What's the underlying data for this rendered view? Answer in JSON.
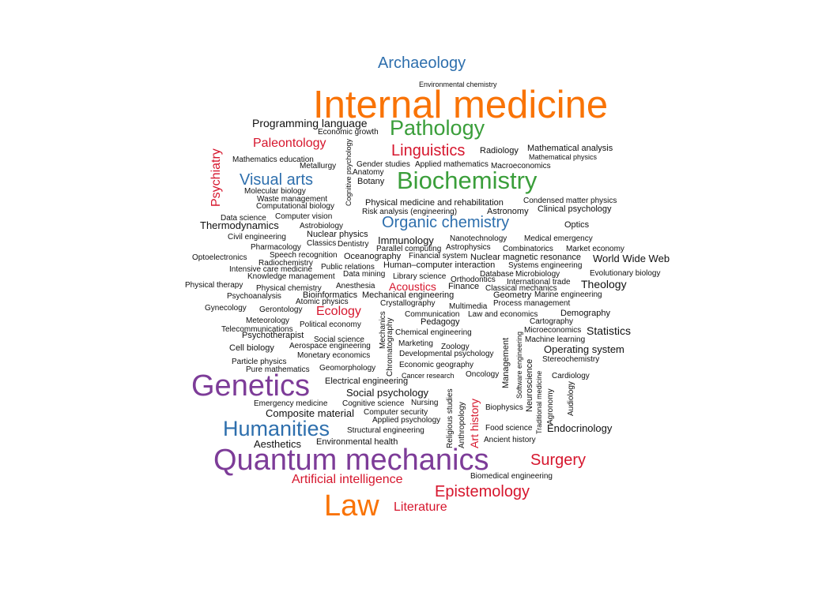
{
  "palette": {
    "orange": "#f97306",
    "green": "#3a9e3a",
    "blue": "#2e6fad",
    "purple": "#7d3c98",
    "red": "#d6162d",
    "black": "#111111"
  },
  "words": [
    "Archaeology",
    "Environmental chemistry",
    "Internal medicine",
    "Programming language",
    "Pathology",
    "Economic growth",
    "Psychiatry",
    "Paleontology",
    "Linguistics",
    "Radiology",
    "Mathematical analysis",
    "Mathematical physics",
    "Mathematics education",
    "Metallurgy",
    "Gender studies",
    "Applied mathematics",
    "Macroeconomics",
    "Visual arts",
    "Anatomy",
    "Botany",
    "Biochemistry",
    "Molecular biology",
    "Cognitive psychology",
    "Waste management",
    "Computational biology",
    "Physical medicine and rehabilitation",
    "Condensed matter physics",
    "Risk analysis (engineering)",
    "Astronomy",
    "Clinical psychology",
    "Data science",
    "Computer vision",
    "Organic chemistry",
    "Thermodynamics",
    "Astrobiology",
    "Optics",
    "Nuclear physics",
    "Civil engineering",
    "Immunology",
    "Nanotechnology",
    "Medical emergency",
    "Classics",
    "Dentistry",
    "Pharmacology",
    "Parallel computing",
    "Astrophysics",
    "Combinatorics",
    "Market economy",
    "Speech recognition",
    "Oceanography",
    "Financial system",
    "Nuclear magnetic resonance",
    "World Wide Web",
    "Optoelectronics",
    "Radiochemistry",
    "Public relations",
    "Human–computer interaction",
    "Systems engineering",
    "Intensive care medicine",
    "Data mining",
    "Database",
    "Microbiology",
    "Evolutionary biology",
    "Knowledge management",
    "Library science",
    "Orthodontics",
    "International trade",
    "Theology",
    "Physical therapy",
    "Physical chemistry",
    "Anesthesia",
    "Acoustics",
    "Finance",
    "Classical mechanics",
    "Psychoanalysis",
    "Bioinformatics",
    "Mechanical engineering",
    "Geometry",
    "Marine engineering",
    "Atomic physics",
    "Crystallography",
    "Multimedia",
    "Process management",
    "Gynecology",
    "Gerontology",
    "Ecology",
    "Communication",
    "Law and economics",
    "Demography",
    "Meteorology",
    "Mechanics",
    "Political economy",
    "Pedagogy",
    "Cartography",
    "Telecommunications",
    "Chemical engineering",
    "Microeconomics",
    "Statistics",
    "Psychotherapist",
    "Social science",
    "Chromatography",
    "Management",
    "Machine learning",
    "Cell biology",
    "Aerospace engineering",
    "Marketing",
    "Zoology",
    "Operating system",
    "Monetary economics",
    "Developmental psychology",
    "Software engineering",
    "Stereochemistry",
    "Particle physics",
    "Neuroscience",
    "Pure mathematics",
    "Geomorphology",
    "Economic geography",
    "Traditional medicine",
    "Genetics",
    "Cancer research",
    "Oncology",
    "Cardiology",
    "Electrical engineering",
    "Social psychology",
    "Emergency medicine",
    "Cognitive science",
    "Nursing",
    "Religious studies",
    "Biophysics",
    "Agronomy",
    "Audiology",
    "Composite material",
    "Computer security",
    "Anthropology",
    "Art history",
    "Applied psychology",
    "Humanities",
    "Food science",
    "Endocrinology",
    "Structural engineering",
    "Aesthetics",
    "Environmental health",
    "Ancient history",
    "Quantum mechanics",
    "Surgery",
    "Artificial intelligence",
    "Biomedical engineering",
    "Epistemology",
    "Law",
    "Literature"
  ]
}
